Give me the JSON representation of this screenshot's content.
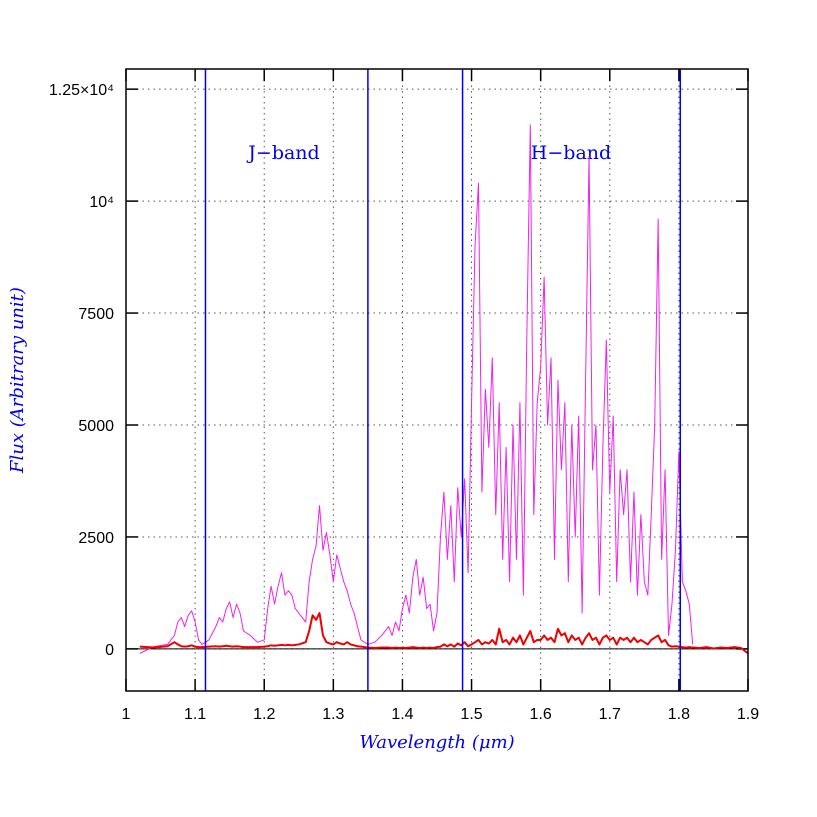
{
  "chart_data": {
    "type": "line",
    "xlabel": "Wavelength (μm)",
    "ylabel": "Flux (Arbitrary unit)",
    "annotations": [
      "J−band",
      "H−band"
    ],
    "xlim": [
      1,
      1.9
    ],
    "ylim": [
      -940,
      12950
    ],
    "xticks": [
      1,
      1.1,
      1.2,
      1.3,
      1.4,
      1.5,
      1.6,
      1.7,
      1.8,
      1.9
    ],
    "yticks": [
      0,
      2500,
      5000,
      7500,
      {
        "value": 10000,
        "label": "10⁴"
      },
      {
        "value": 12500,
        "label": "1.25×10⁴"
      }
    ],
    "grid": true,
    "zero_line": true,
    "band_lines": [
      1.115,
      1.35,
      1.487,
      1.802
    ],
    "band_line_color": "#0000ee",
    "x": [
      1.02,
      1.04,
      1.06,
      1.07,
      1.075,
      1.08,
      1.085,
      1.09,
      1.095,
      1.1,
      1.105,
      1.11,
      1.12,
      1.13,
      1.135,
      1.14,
      1.145,
      1.15,
      1.155,
      1.16,
      1.165,
      1.17,
      1.18,
      1.19,
      1.2,
      1.205,
      1.21,
      1.215,
      1.22,
      1.225,
      1.23,
      1.235,
      1.24,
      1.245,
      1.25,
      1.26,
      1.265,
      1.27,
      1.275,
      1.28,
      1.285,
      1.29,
      1.295,
      1.3,
      1.305,
      1.31,
      1.315,
      1.32,
      1.325,
      1.33,
      1.335,
      1.34,
      1.35,
      1.36,
      1.37,
      1.38,
      1.385,
      1.39,
      1.395,
      1.4,
      1.405,
      1.41,
      1.415,
      1.42,
      1.425,
      1.43,
      1.435,
      1.44,
      1.445,
      1.45,
      1.455,
      1.46,
      1.465,
      1.47,
      1.475,
      1.48,
      1.485,
      1.49,
      1.495,
      1.5,
      1.505,
      1.51,
      1.515,
      1.52,
      1.525,
      1.53,
      1.535,
      1.54,
      1.545,
      1.55,
      1.555,
      1.56,
      1.565,
      1.57,
      1.575,
      1.58,
      1.585,
      1.59,
      1.595,
      1.6,
      1.605,
      1.61,
      1.615,
      1.62,
      1.625,
      1.63,
      1.635,
      1.64,
      1.645,
      1.65,
      1.655,
      1.66,
      1.665,
      1.67,
      1.675,
      1.68,
      1.685,
      1.69,
      1.695,
      1.7,
      1.705,
      1.71,
      1.715,
      1.72,
      1.725,
      1.73,
      1.735,
      1.74,
      1.745,
      1.75,
      1.755,
      1.76,
      1.765,
      1.77,
      1.775,
      1.78,
      1.785,
      1.79,
      1.795,
      1.8,
      1.805,
      1.81,
      1.815,
      1.82,
      1.83,
      1.84,
      1.85,
      1.86,
      1.87,
      1.88,
      1.89,
      1.9
    ],
    "series": [
      {
        "color": "#ee22ee",
        "width": 1,
        "values": [
          -100,
          50,
          100,
          300,
          600,
          700,
          500,
          750,
          850,
          600,
          200,
          100,
          200,
          500,
          700,
          600,
          900,
          1050,
          700,
          1000,
          800,
          400,
          300,
          150,
          200,
          900,
          1400,
          1000,
          1400,
          1700,
          1200,
          1300,
          1200,
          900,
          800,
          600,
          1500,
          2000,
          2300,
          3200,
          2200,
          2600,
          2100,
          1500,
          2100,
          1800,
          1500,
          1300,
          1000,
          800,
          500,
          200,
          100,
          150,
          300,
          500,
          300,
          600,
          400,
          900,
          1200,
          800,
          1600,
          2000,
          1200,
          1600,
          900,
          1000,
          400,
          800,
          2500,
          3500,
          2000,
          3200,
          1500,
          3600,
          2500,
          3800,
          1700,
          5500,
          9000,
          10400,
          3500,
          5800,
          4500,
          6500,
          3000,
          5500,
          2000,
          4500,
          1500,
          5000,
          2000,
          5500,
          1200,
          7000,
          11700,
          3000,
          5500,
          6300,
          8300,
          5000,
          6500,
          2000,
          6000,
          4000,
          5500,
          1500,
          5000,
          2500,
          5200,
          800,
          6000,
          11000,
          4000,
          5000,
          1200,
          4500,
          6900,
          3500,
          5200,
          1500,
          4000,
          3000,
          4000,
          1500,
          3500,
          1200,
          3000,
          1500,
          1200,
          3000,
          5000,
          9600,
          2000,
          4000,
          300,
          1000,
          2200,
          4400,
          1500,
          1300,
          1000,
          100,
          null,
          null,
          null,
          null,
          null,
          null,
          null,
          null
        ]
      },
      {
        "color": "#ee0000",
        "width": 2,
        "values": [
          50,
          30,
          60,
          150,
          100,
          60,
          50,
          60,
          80,
          50,
          40,
          40,
          50,
          60,
          50,
          60,
          70,
          60,
          50,
          60,
          50,
          40,
          40,
          40,
          50,
          60,
          80,
          70,
          80,
          90,
          80,
          90,
          80,
          90,
          100,
          150,
          400,
          750,
          650,
          800,
          300,
          150,
          120,
          100,
          150,
          120,
          100,
          150,
          100,
          80,
          60,
          50,
          30,
          20,
          30,
          30,
          20,
          30,
          20,
          30,
          20,
          30,
          40,
          30,
          20,
          30,
          20,
          30,
          20,
          40,
          50,
          100,
          60,
          100,
          50,
          120,
          80,
          150,
          60,
          100,
          150,
          200,
          100,
          150,
          120,
          200,
          100,
          450,
          150,
          200,
          100,
          250,
          150,
          300,
          100,
          250,
          400,
          150,
          200,
          200,
          300,
          200,
          250,
          150,
          450,
          300,
          350,
          150,
          300,
          200,
          250,
          100,
          250,
          350,
          200,
          250,
          100,
          250,
          300,
          200,
          250,
          100,
          250,
          200,
          250,
          150,
          250,
          150,
          200,
          150,
          100,
          200,
          250,
          300,
          150,
          200,
          80,
          50,
          60,
          50,
          40,
          30,
          40,
          30,
          20,
          40,
          10,
          30,
          20,
          40,
          20,
          -100
        ]
      }
    ]
  }
}
